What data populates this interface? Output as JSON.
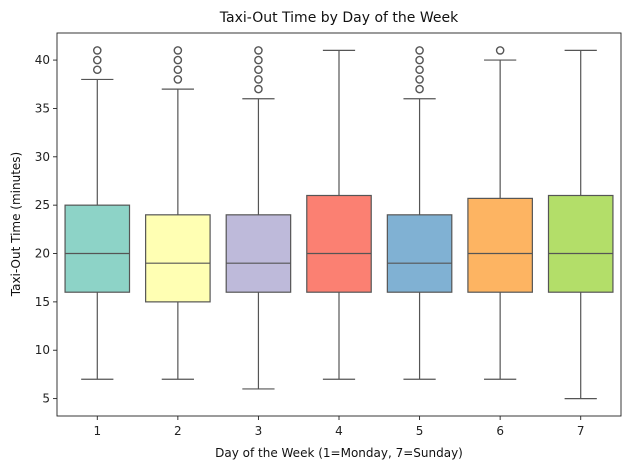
{
  "chart_data": {
    "type": "box",
    "title": "Taxi-Out Time by Day of the Week",
    "xlabel": "Day of the Week (1=Monday, 7=Sunday)",
    "ylabel": "Taxi-Out Time (minutes)",
    "ylim": [
      3.2,
      42.8
    ],
    "yticks": [
      5,
      10,
      15,
      20,
      25,
      30,
      35,
      40
    ],
    "grid": false,
    "legend": "none",
    "categories": [
      "1",
      "2",
      "3",
      "4",
      "5",
      "6",
      "7"
    ],
    "colors": [
      "#8dd3c7",
      "#ffffb3",
      "#bebada",
      "#fb8072",
      "#80b1d3",
      "#fdb462",
      "#b3de69"
    ],
    "boxes": [
      {
        "category": "1",
        "whisker_low": 7,
        "q1": 16,
        "median": 20,
        "q3": 25,
        "whisker_high": 38,
        "outliers": [
          39,
          40,
          41
        ]
      },
      {
        "category": "2",
        "whisker_low": 7,
        "q1": 15,
        "median": 19,
        "q3": 24,
        "whisker_high": 37,
        "outliers": [
          38,
          39,
          40,
          41
        ]
      },
      {
        "category": "3",
        "whisker_low": 6,
        "q1": 16,
        "median": 19,
        "q3": 24,
        "whisker_high": 36,
        "outliers": [
          37,
          38,
          39,
          40,
          41
        ]
      },
      {
        "category": "4",
        "whisker_low": 7,
        "q1": 16,
        "median": 20,
        "q3": 26,
        "whisker_high": 41,
        "outliers": []
      },
      {
        "category": "5",
        "whisker_low": 7,
        "q1": 16,
        "median": 19,
        "q3": 24,
        "whisker_high": 36,
        "outliers": [
          37,
          38,
          39,
          40,
          41
        ]
      },
      {
        "category": "6",
        "whisker_low": 7,
        "q1": 16,
        "median": 20,
        "q3": 25.7,
        "whisker_high": 40,
        "outliers": [
          41
        ]
      },
      {
        "category": "7",
        "whisker_low": 5,
        "q1": 16,
        "median": 20,
        "q3": 26,
        "whisker_high": 41,
        "outliers": []
      }
    ]
  }
}
